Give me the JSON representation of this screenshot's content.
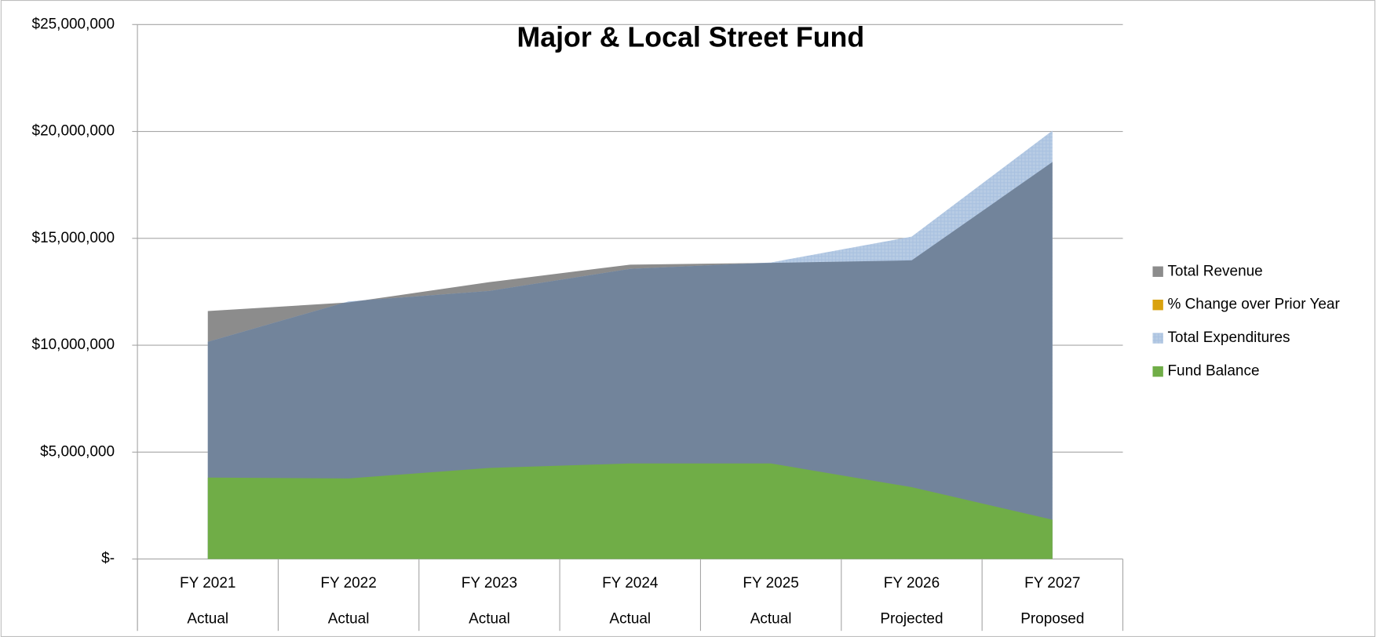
{
  "chart_data": {
    "type": "area",
    "title": "Major & Local Street Fund",
    "categories": [
      [
        "FY 2021",
        "Actual"
      ],
      [
        "FY 2022",
        "Actual"
      ],
      [
        "FY 2023",
        "Actual"
      ],
      [
        "FY 2024",
        "Actual"
      ],
      [
        "FY 2025",
        "Actual"
      ],
      [
        "FY 2026",
        "Projected"
      ],
      [
        "FY 2027",
        "Proposed"
      ]
    ],
    "series": [
      {
        "name": "Total Revenue",
        "color": "#8c8c8c",
        "values": [
          11600000,
          12000000,
          12950000,
          13770000,
          13850000,
          13970000,
          18570000
        ]
      },
      {
        "name": "% Change over Prior Year",
        "color": "#d9a20e",
        "values": [
          0,
          0,
          0,
          0,
          0,
          0,
          0
        ]
      },
      {
        "name": "Total Expenditures",
        "color": "#b8cce4",
        "values": [
          10160000,
          12050000,
          12540000,
          13570000,
          13870000,
          15080000,
          20040000
        ]
      },
      {
        "name": "Fund Balance",
        "color": "#70ad47",
        "values": [
          3810000,
          3770000,
          4260000,
          4470000,
          4470000,
          3360000,
          1840000
        ]
      }
    ],
    "ylim": [
      0,
      25000000
    ],
    "yticks": [
      {
        "value": 0,
        "label": "$-"
      },
      {
        "value": 5000000,
        "label": "$5,000,000"
      },
      {
        "value": 10000000,
        "label": "$10,000,000"
      },
      {
        "value": 15000000,
        "label": "$15,000,000"
      },
      {
        "value": 20000000,
        "label": "$20,000,000"
      },
      {
        "value": 25000000,
        "label": "$25,000,000"
      }
    ],
    "grid": true,
    "legend": "right"
  }
}
